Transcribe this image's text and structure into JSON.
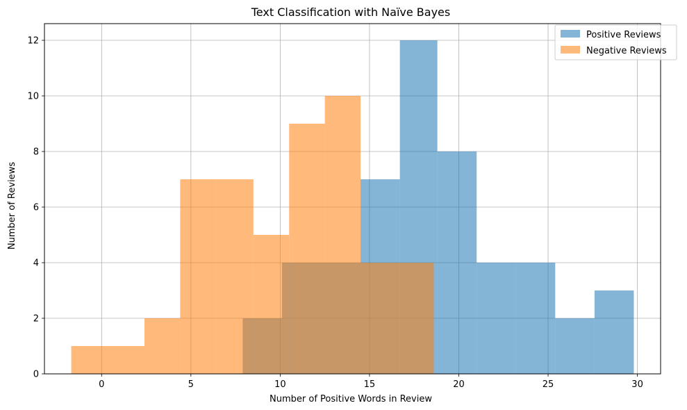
{
  "chart_data": {
    "type": "histogram",
    "title": "Text Classification with Naïve Bayes",
    "xlabel": "Number of Positive Words in Review",
    "ylabel": "Number of Reviews",
    "xlim": [
      -3.2,
      31.3
    ],
    "ylim": [
      0,
      12.6
    ],
    "xticks": [
      0,
      5,
      10,
      15,
      20,
      25,
      30
    ],
    "yticks": [
      0,
      2,
      4,
      6,
      8,
      10,
      12
    ],
    "grid": true,
    "legend_position": "top-right",
    "series": [
      {
        "name": "Positive Reviews",
        "color": "#1f77b4",
        "alpha": 0.55,
        "bin_edges": [
          7.9,
          10.1,
          12.3,
          14.5,
          16.7,
          18.8,
          21.0,
          23.2,
          25.4,
          27.6,
          29.8
        ],
        "values": [
          2,
          4,
          4,
          7,
          12,
          8,
          4,
          4,
          2,
          3
        ]
      },
      {
        "name": "Negative Reviews",
        "color": "#ff7f0e",
        "alpha": 0.55,
        "bin_edges": [
          -1.7,
          0.3,
          2.4,
          4.4,
          6.4,
          8.5,
          10.5,
          12.5,
          14.5,
          16.6,
          18.6
        ],
        "values": [
          1,
          1,
          2,
          7,
          7,
          5,
          9,
          10,
          4,
          4
        ]
      }
    ]
  }
}
